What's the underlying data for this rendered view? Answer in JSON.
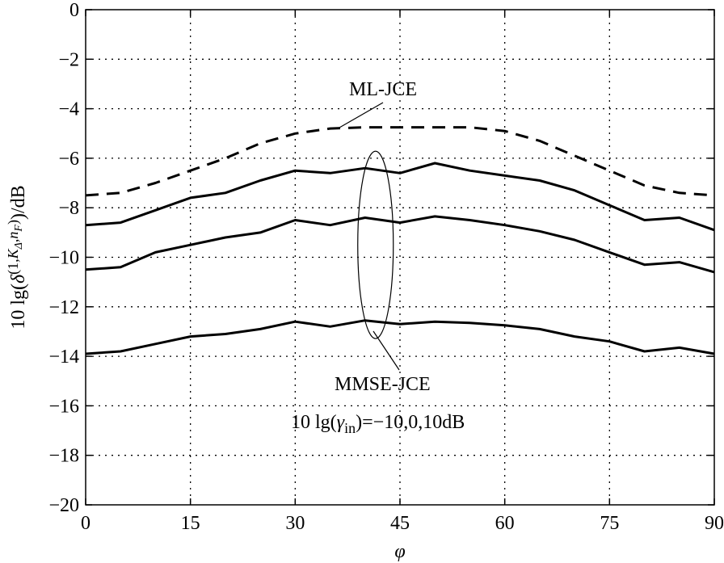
{
  "chart_data": {
    "type": "line",
    "title": "",
    "xlabel": "φ",
    "ylabel": "10 lg(δ(1,K_Δ,n_F))/dB",
    "xlim": [
      0,
      90
    ],
    "ylim": [
      -20,
      0
    ],
    "xticks": [
      0,
      15,
      30,
      45,
      60,
      75,
      90
    ],
    "yticks": [
      0,
      -2,
      -4,
      -6,
      -8,
      -10,
      -12,
      -14,
      -16,
      -18,
      -20
    ],
    "grid": true,
    "x": [
      0,
      5,
      10,
      15,
      20,
      25,
      30,
      35,
      40,
      45,
      50,
      55,
      60,
      65,
      70,
      75,
      80,
      85,
      90
    ],
    "series": [
      {
        "style": "dashed",
        "values": [
          -7.5,
          -7.4,
          -7.0,
          -6.5,
          -6.0,
          -5.4,
          -5.0,
          -4.8,
          -4.75,
          -4.75,
          -4.75,
          -4.75,
          -4.9,
          -5.3,
          -5.9,
          -6.5,
          -7.1,
          -7.4,
          -7.5
        ]
      },
      {
        "style": "solid",
        "values": [
          -8.7,
          -8.6,
          -8.1,
          -7.6,
          -7.4,
          -6.9,
          -6.5,
          -6.6,
          -6.4,
          -6.6,
          -6.2,
          -6.5,
          -6.7,
          -6.9,
          -7.3,
          -7.9,
          -8.5,
          -8.4,
          -8.9
        ]
      },
      {
        "style": "solid",
        "values": [
          -10.5,
          -10.4,
          -9.8,
          -9.5,
          -9.2,
          -9.0,
          -8.5,
          -8.7,
          -8.4,
          -8.6,
          -8.35,
          -8.5,
          -8.7,
          -8.95,
          -9.3,
          -9.8,
          -10.3,
          -10.2,
          -10.6
        ]
      },
      {
        "style": "solid",
        "values": [
          -13.9,
          -13.8,
          -13.5,
          -13.2,
          -13.1,
          -12.9,
          -12.6,
          -12.8,
          -12.55,
          -12.7,
          -12.6,
          -12.65,
          -12.75,
          -12.9,
          -13.2,
          -13.4,
          -13.8,
          -13.65,
          -13.9
        ]
      }
    ],
    "annotations": {
      "ml_label": "ML-JCE",
      "mmse_label": "MMSE-JCE",
      "snr_label": "10 lg(γ_in)=−10,0,10dB",
      "ellipse_center": [
        41.5,
        -9.5
      ]
    }
  }
}
